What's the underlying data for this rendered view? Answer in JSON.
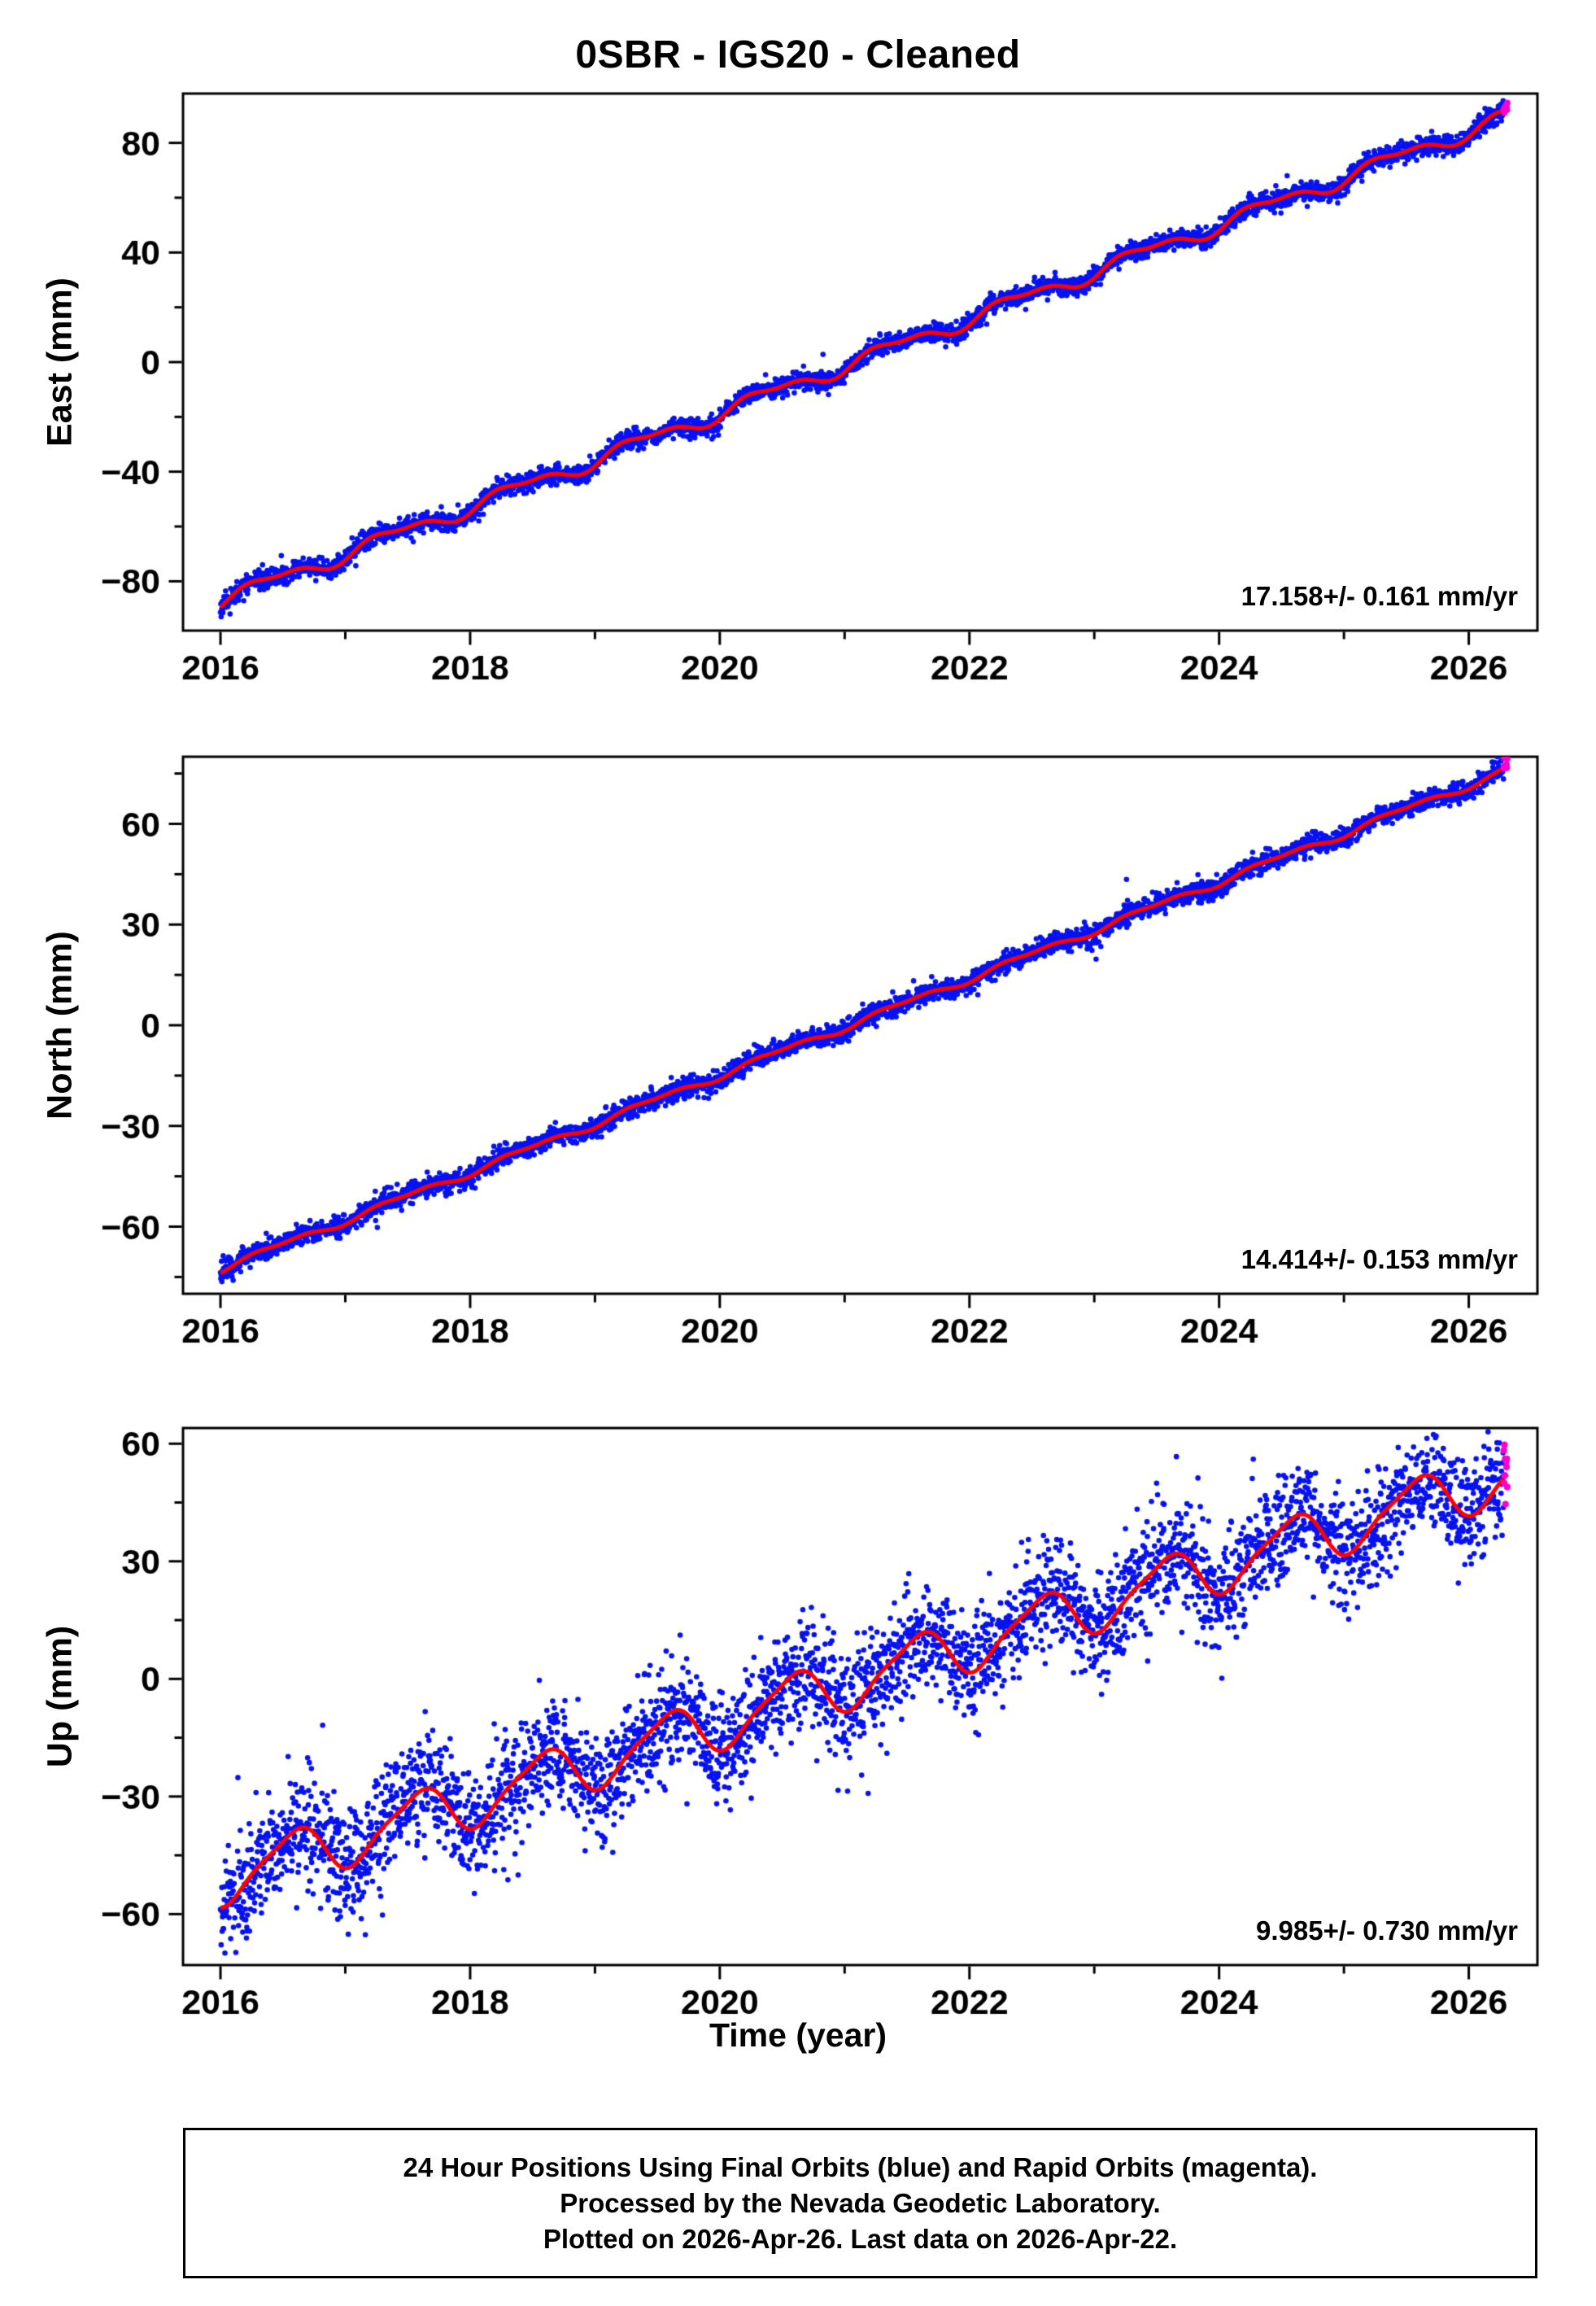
{
  "title": "0SBR - IGS20 - Cleaned",
  "xlabel": "Time (year)",
  "caption": {
    "line1": "24 Hour Positions Using Final Orbits (blue) and Rapid Orbits (magenta).",
    "line2": "Processed by the Nevada Geodetic Laboratory.",
    "line3": "Plotted on 2026-Apr-26. Last data on 2026-Apr-22."
  },
  "colors": {
    "final_blue": "#0612f2",
    "rapid_magenta": "#ff00cc",
    "model_red": "#ff0000",
    "frame_black": "#000000"
  },
  "chart_data": [
    {
      "type": "scatter",
      "panel": "east",
      "ylabel": "East (mm)",
      "rate_label": "17.158+/- 0.161 mm/yr",
      "rate_mm_per_yr": 17.158,
      "rate_uncertainty_mm_per_yr": 0.161,
      "xlim": [
        2015.7,
        2026.55
      ],
      "xticks": [
        2016,
        2018,
        2020,
        2022,
        2024,
        2026
      ],
      "xtick_minor_step": 1,
      "ylim": [
        -98,
        98
      ],
      "yticks": [
        -80,
        -40,
        0,
        40,
        80
      ],
      "ytick_step": 40,
      "data_start": 2016.0,
      "data_end": 2026.31,
      "rapid_start": 2026.28,
      "trend": {
        "intercept_2016": -87.0,
        "rate": 17.158
      },
      "seasonal": {
        "annual_amp": 2.5,
        "annual_phase": 0.12,
        "semiannual_amp": 1.2,
        "semiannual_phase": 0.05
      },
      "noise_sigma": 1.7,
      "point_radius": 3.3,
      "seed": 11,
      "yearly_model_values": {
        "2016": -87.0,
        "2017": -69.8,
        "2018": -52.7,
        "2019": -35.5,
        "2020": -18.4,
        "2021": -1.2,
        "2022": 16.0,
        "2023": 33.1,
        "2024": 50.3,
        "2025": 67.4,
        "2026": 84.6
      }
    },
    {
      "type": "scatter",
      "panel": "north",
      "ylabel": "North (mm)",
      "rate_label": "14.414+/- 0.153 mm/yr",
      "rate_mm_per_yr": 14.414,
      "rate_uncertainty_mm_per_yr": 0.153,
      "xlim": [
        2015.7,
        2026.55
      ],
      "xticks": [
        2016,
        2018,
        2020,
        2022,
        2024,
        2026
      ],
      "xtick_minor_step": 1,
      "ylim": [
        -80,
        80
      ],
      "yticks": [
        -60,
        -30,
        0,
        30,
        60
      ],
      "ytick_step": 30,
      "data_start": 2016.0,
      "data_end": 2026.31,
      "rapid_start": 2026.28,
      "trend": {
        "intercept_2016": -72.5,
        "rate": 14.414
      },
      "seasonal": {
        "annual_amp": 0.9,
        "annual_phase": 0.2,
        "semiannual_amp": 0.5,
        "semiannual_phase": 0.1
      },
      "noise_sigma": 1.5,
      "point_radius": 3.3,
      "seed": 22,
      "yearly_model_values": {
        "2016": -72.5,
        "2017": -58.1,
        "2018": -43.7,
        "2019": -29.3,
        "2020": -14.8,
        "2021": -0.4,
        "2022": 14.0,
        "2023": 28.4,
        "2024": 42.8,
        "2025": 57.2,
        "2026": 71.6
      }
    },
    {
      "type": "scatter",
      "panel": "up",
      "ylabel": "Up (mm)",
      "rate_label": "9.985+/- 0.730 mm/yr",
      "rate_mm_per_yr": 9.985,
      "rate_uncertainty_mm_per_yr": 0.73,
      "xlim": [
        2015.7,
        2026.55
      ],
      "xticks": [
        2016,
        2018,
        2020,
        2022,
        2024,
        2026
      ],
      "xtick_minor_step": 1,
      "ylim": [
        -73,
        64
      ],
      "yticks": [
        -60,
        -30,
        0,
        30,
        60
      ],
      "ytick_step": 30,
      "data_start": 2016.0,
      "data_end": 2026.31,
      "rapid_start": 2026.28,
      "trend": {
        "intercept_2016": -51.0,
        "rate": 9.985
      },
      "seasonal": {
        "annual_amp": 6.5,
        "annual_phase": 0.32,
        "semiannual_amp": 1.5,
        "semiannual_phase": 0.1
      },
      "noise_sigma": 7.0,
      "point_radius": 3.3,
      "seed": 33,
      "yearly_model_values": {
        "2016": -51.0,
        "2017": -41.0,
        "2018": -31.0,
        "2019": -21.1,
        "2020": -11.1,
        "2021": -1.1,
        "2022": 8.9,
        "2023": 18.9,
        "2024": 28.9,
        "2025": 38.9,
        "2026": 48.9
      }
    }
  ]
}
